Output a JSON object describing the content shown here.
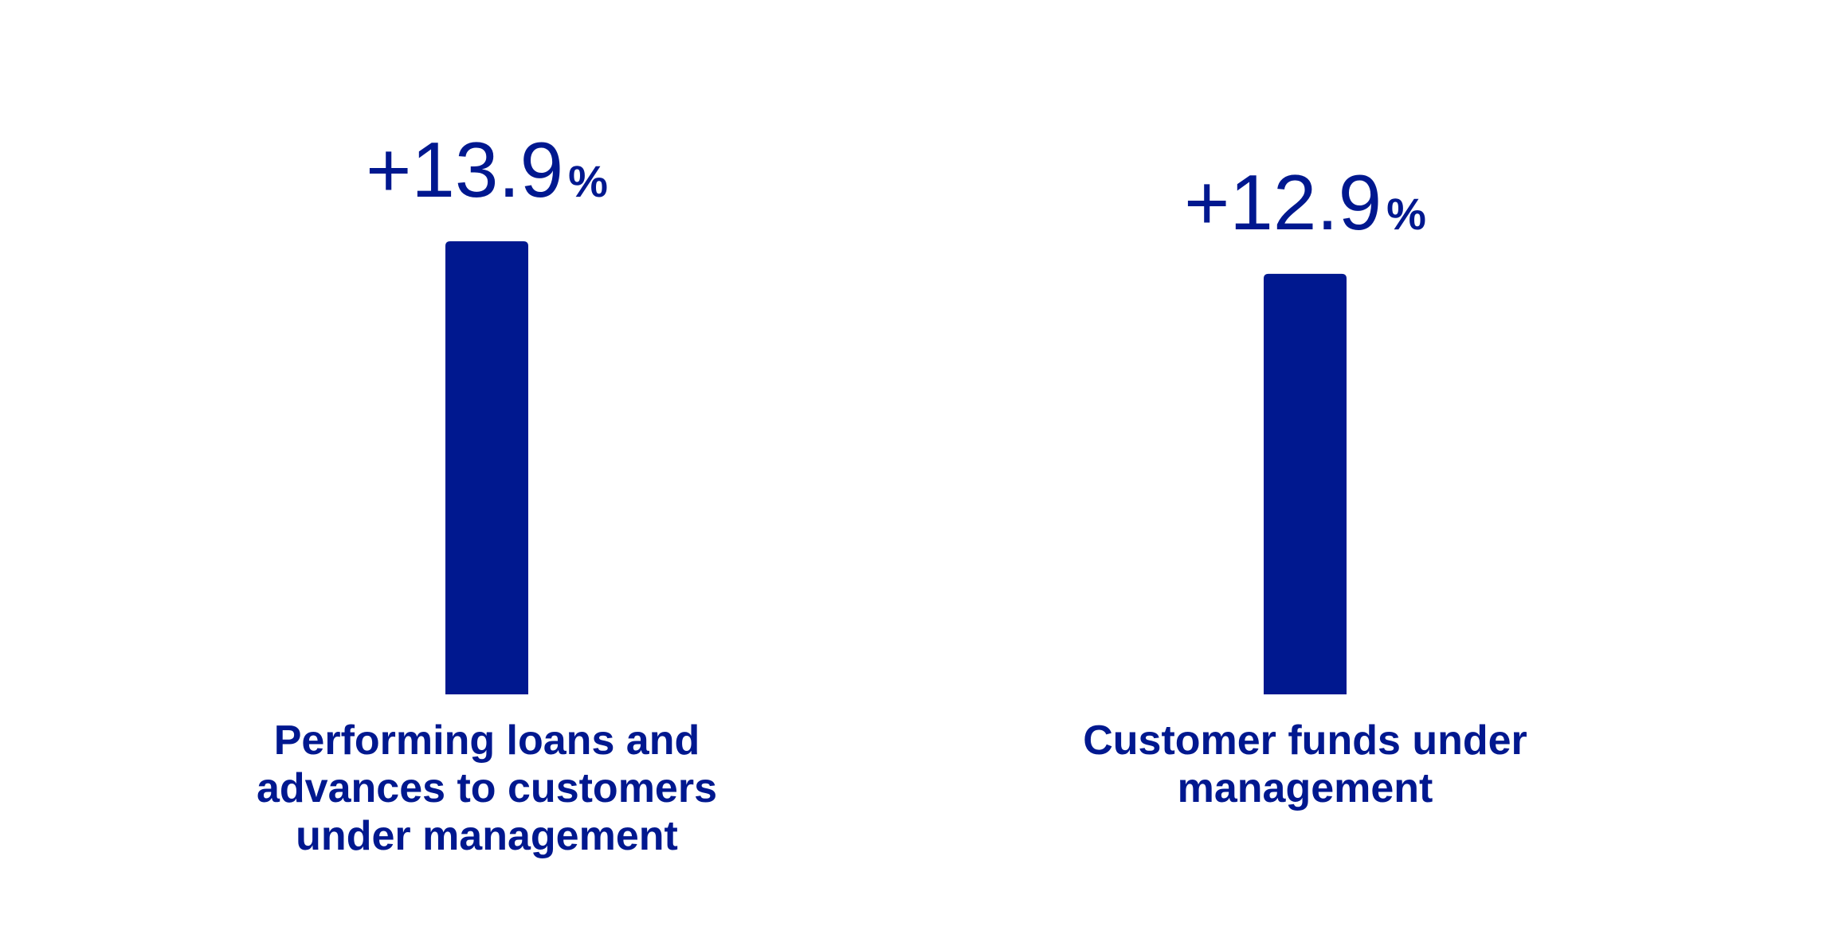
{
  "chart_data": {
    "type": "bar",
    "categories": [
      "Performing loans and\nadvances to customers\nunder management",
      "Customer funds under\nmanagement"
    ],
    "values": [
      13.9,
      12.9
    ],
    "data_labels": [
      {
        "number": "+13.9",
        "unit": "%"
      },
      {
        "number": "+12.9",
        "unit": "%"
      }
    ],
    "title": "",
    "xlabel": "",
    "ylabel": "",
    "ylim": [
      0,
      13.9
    ],
    "grid": false,
    "legend": "none",
    "colors": {
      "bar": "#00188F",
      "text": "#00188F"
    }
  }
}
